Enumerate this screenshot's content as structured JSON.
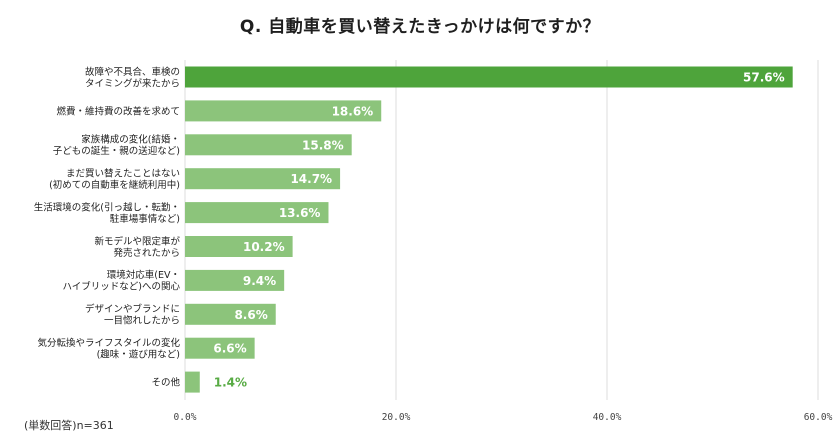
{
  "title": "Q. 自動車を買い替えたきっかけは何ですか？",
  "note": "(単数回答)n=361",
  "colors": {
    "highlight_bar": "#4ea43b",
    "bar": "#8cc47b",
    "grid": "#dddddd",
    "outside_label": "#58ab44",
    "inside_label": "#ffffff"
  },
  "chart_data": {
    "type": "bar",
    "orientation": "horizontal",
    "title": "Q. 自動車を買い替えたきっかけは何ですか？",
    "xlabel": "",
    "ylabel": "",
    "xlim": [
      0,
      60
    ],
    "grid": true,
    "legend": "none",
    "ticks": [
      "0.0%",
      "20.0%",
      "40.0%",
      "60.0%"
    ],
    "tick_values": [
      0,
      20,
      40,
      60
    ],
    "categories": [
      [
        "故障や不具合、車検の",
        "タイミングが来たから"
      ],
      [
        "燃費・維持費の改善を求めて"
      ],
      [
        "家族構成の変化(結婚・",
        "子どもの誕生・親の送迎など)"
      ],
      [
        "まだ買い替えたことはない",
        "(初めての自動車を継続利用中)"
      ],
      [
        "生活環境の変化(引っ越し・転勤・",
        "駐車場事情など)"
      ],
      [
        "新モデルや限定車が",
        "発売されたから"
      ],
      [
        "環境対応車(EV・",
        "ハイブリッドなど)への関心"
      ],
      [
        "デザインやブランドに",
        "一目惚れしたから"
      ],
      [
        "気分転換やライフスタイルの変化",
        "(趣味・遊び用など)"
      ],
      [
        "その他"
      ]
    ],
    "values": [
      57.6,
      18.6,
      15.8,
      14.7,
      13.6,
      10.2,
      9.4,
      8.6,
      6.6,
      1.4
    ],
    "value_labels": [
      "57.6%",
      "18.6%",
      "15.8%",
      "14.7%",
      "13.6%",
      "10.2%",
      "9.4%",
      "8.6%",
      "6.6%",
      "1.4%"
    ]
  }
}
